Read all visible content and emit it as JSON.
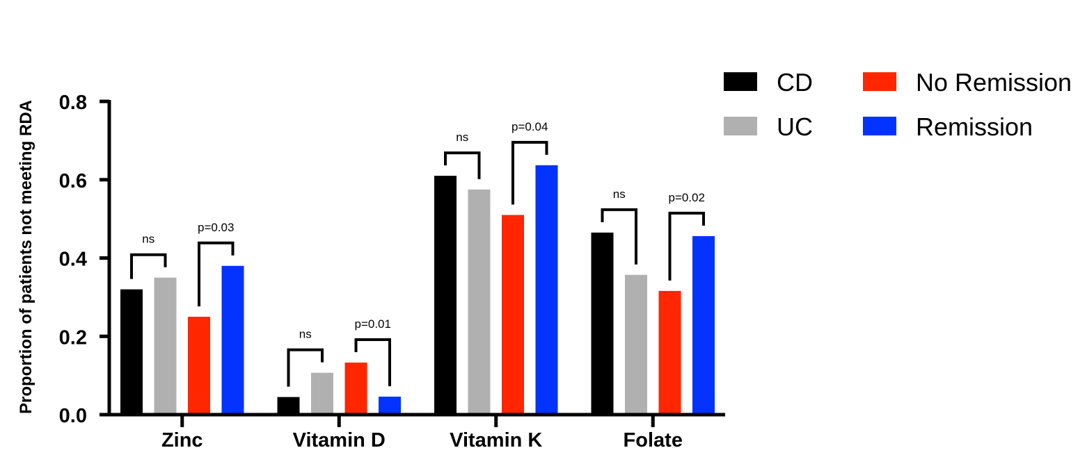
{
  "chart_data": {
    "type": "bar",
    "ylabel": "Proportion of patients not meeting RDA",
    "ylim": [
      0,
      0.8
    ],
    "yticks": [
      "0.0",
      "0.2",
      "0.4",
      "0.6",
      "0.8"
    ],
    "categories": [
      "Zinc",
      "Vitamin D",
      "Vitamin K",
      "Folate"
    ],
    "series": [
      {
        "name": "CD",
        "color": "#000000",
        "values": [
          0.32,
          0.045,
          0.61,
          0.465
        ]
      },
      {
        "name": "UC",
        "color": "#b0b0b1",
        "values": [
          0.35,
          0.107,
          0.575,
          0.357
        ]
      },
      {
        "name": "No Remission",
        "color": "#ff2600",
        "values": [
          0.25,
          0.133,
          0.51,
          0.316
        ]
      },
      {
        "name": "Remission",
        "color": "#0433ff",
        "values": [
          0.38,
          0.046,
          0.637,
          0.456
        ]
      }
    ],
    "comparisons": [
      {
        "category": "Zinc",
        "pair": [
          "CD",
          "UC"
        ],
        "label": "ns"
      },
      {
        "category": "Zinc",
        "pair": [
          "No Remission",
          "Remission"
        ],
        "label": "p=0.03"
      },
      {
        "category": "Vitamin D",
        "pair": [
          "CD",
          "UC"
        ],
        "label": "ns"
      },
      {
        "category": "Vitamin D",
        "pair": [
          "No Remission",
          "Remission"
        ],
        "label": "p=0.01"
      },
      {
        "category": "Vitamin K",
        "pair": [
          "CD",
          "UC"
        ],
        "label": "ns"
      },
      {
        "category": "Vitamin K",
        "pair": [
          "No Remission",
          "Remission"
        ],
        "label": "p=0.04"
      },
      {
        "category": "Folate",
        "pair": [
          "CD",
          "UC"
        ],
        "label": "ns"
      },
      {
        "category": "Folate",
        "pair": [
          "No Remission",
          "Remission"
        ],
        "label": "p=0.02"
      }
    ],
    "legend": {
      "placement": "top-right",
      "columns": 2
    }
  }
}
